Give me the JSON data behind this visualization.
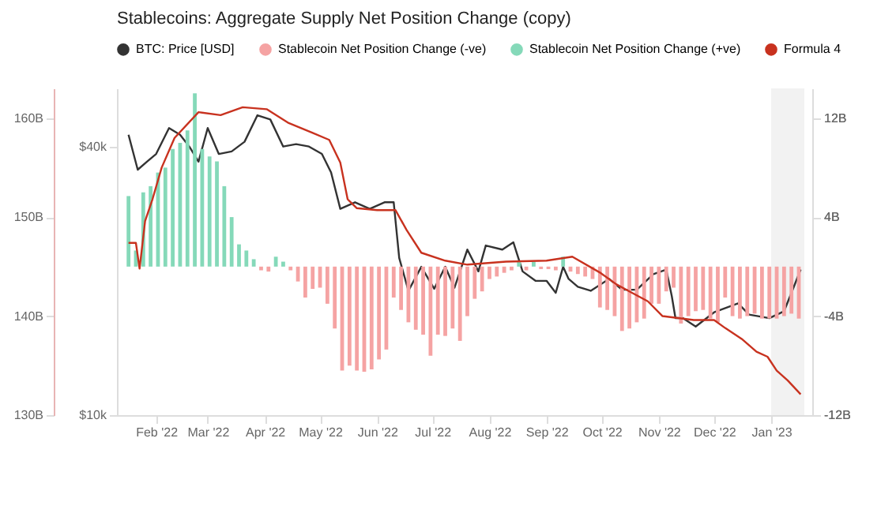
{
  "chart_data": {
    "type": "bar",
    "title": "Stablecoins: Aggregate Supply Net Position Change (copy)",
    "legend": "top",
    "xlim": [
      "2022-01-15",
      "2023-01-19"
    ],
    "xticks": [
      {
        "value": "2022-02-01",
        "label": "Feb '22"
      },
      {
        "value": "2022-03-01",
        "label": "Mar '22"
      },
      {
        "value": "2022-04-01",
        "label": "Apr '22"
      },
      {
        "value": "2022-05-01",
        "label": "May '22"
      },
      {
        "value": "2022-06-01",
        "label": "Jun '22"
      },
      {
        "value": "2022-07-01",
        "label": "Jul '22"
      },
      {
        "value": "2022-08-01",
        "label": "Aug '22"
      },
      {
        "value": "2022-09-01",
        "label": "Sep '22"
      },
      {
        "value": "2022-10-01",
        "label": "Oct '22"
      },
      {
        "value": "2022-11-01",
        "label": "Nov '22"
      },
      {
        "value": "2022-12-01",
        "label": "Dec '22"
      },
      {
        "value": "2023-01-01",
        "label": "Jan '23"
      }
    ],
    "ylim": [
      130,
      163
    ],
    "yticks": [
      {
        "value": 130,
        "label": "130B"
      },
      {
        "value": 140,
        "label": "140B"
      },
      {
        "value": 150,
        "label": "150B"
      },
      {
        "value": 160,
        "label": "160B"
      }
    ],
    "y2lim": [
      10000,
      54000
    ],
    "y2ticks": [
      {
        "value": 10000,
        "label": "$10k"
      },
      {
        "value": 40000,
        "label": "$40k"
      }
    ],
    "y3lim": [
      -12,
      14.4
    ],
    "y3ticks": [
      {
        "value": -12,
        "label": "-12B"
      },
      {
        "value": -4,
        "label": "-4B"
      },
      {
        "value": 4,
        "label": "4B"
      },
      {
        "value": 12,
        "label": "12B"
      }
    ],
    "log": "y2",
    "bands": [
      {
        "axis": "x",
        "from": "2023-01-01",
        "to": "2023-01-19",
        "color": "#f2f2f2"
      }
    ],
    "x": [
      "2022-01-17",
      "2022-01-21",
      "2022-01-25",
      "2022-01-29",
      "2022-02-02",
      "2022-02-06",
      "2022-02-10",
      "2022-02-14",
      "2022-02-18",
      "2022-02-22",
      "2022-02-26",
      "2022-03-02",
      "2022-03-06",
      "2022-03-10",
      "2022-03-14",
      "2022-03-18",
      "2022-03-22",
      "2022-03-26",
      "2022-03-30",
      "2022-04-03",
      "2022-04-07",
      "2022-04-11",
      "2022-04-15",
      "2022-04-19",
      "2022-04-23",
      "2022-04-27",
      "2022-05-01",
      "2022-05-05",
      "2022-05-09",
      "2022-05-13",
      "2022-05-17",
      "2022-05-21",
      "2022-05-25",
      "2022-05-29",
      "2022-06-02",
      "2022-06-06",
      "2022-06-10",
      "2022-06-14",
      "2022-06-18",
      "2022-06-22",
      "2022-06-26",
      "2022-06-30",
      "2022-07-04",
      "2022-07-08",
      "2022-07-12",
      "2022-07-16",
      "2022-07-20",
      "2022-07-24",
      "2022-07-28",
      "2022-08-01",
      "2022-08-05",
      "2022-08-09",
      "2022-08-13",
      "2022-08-17",
      "2022-08-21",
      "2022-08-25",
      "2022-08-29",
      "2022-09-02",
      "2022-09-06",
      "2022-09-10",
      "2022-09-14",
      "2022-09-18",
      "2022-09-22",
      "2022-09-26",
      "2022-09-30",
      "2022-10-04",
      "2022-10-08",
      "2022-10-12",
      "2022-10-16",
      "2022-10-20",
      "2022-10-24",
      "2022-10-28",
      "2022-11-01",
      "2022-11-05",
      "2022-11-09",
      "2022-11-13",
      "2022-11-17",
      "2022-11-21",
      "2022-11-25",
      "2022-11-29",
      "2022-12-03",
      "2022-12-07",
      "2022-12-11",
      "2022-12-15",
      "2022-12-19",
      "2022-12-23",
      "2022-12-27",
      "2022-12-31",
      "2023-01-04",
      "2023-01-08",
      "2023-01-12",
      "2023-01-16"
    ],
    "series": [
      {
        "name": "BTC: Price [USD]",
        "type": "line",
        "axis": "y2",
        "color": "#333333",
        "x": [
          "2022-01-17",
          "2022-01-22",
          "2022-01-27",
          "2022-02-01",
          "2022-02-08",
          "2022-02-14",
          "2022-02-19",
          "2022-02-24",
          "2022-03-01",
          "2022-03-07",
          "2022-03-14",
          "2022-03-21",
          "2022-03-28",
          "2022-04-04",
          "2022-04-11",
          "2022-04-18",
          "2022-04-25",
          "2022-05-02",
          "2022-05-07",
          "2022-05-12",
          "2022-05-20",
          "2022-05-28",
          "2022-06-05",
          "2022-06-10",
          "2022-06-13",
          "2022-06-18",
          "2022-06-25",
          "2022-07-02",
          "2022-07-08",
          "2022-07-13",
          "2022-07-20",
          "2022-07-26",
          "2022-07-30",
          "2022-08-08",
          "2022-08-14",
          "2022-08-19",
          "2022-08-26",
          "2022-09-01",
          "2022-09-06",
          "2022-09-10",
          "2022-09-13",
          "2022-09-18",
          "2022-09-25",
          "2022-10-05",
          "2022-10-12",
          "2022-10-20",
          "2022-10-29",
          "2022-11-05",
          "2022-11-08",
          "2022-11-10",
          "2022-11-14",
          "2022-11-21",
          "2022-12-01",
          "2022-12-14",
          "2022-12-20",
          "2022-12-31",
          "2023-01-08",
          "2023-01-12",
          "2023-01-17"
        ],
        "values": [
          42500,
          35500,
          37000,
          38500,
          44000,
          42500,
          40000,
          37000,
          44000,
          38500,
          39000,
          41000,
          47000,
          46000,
          40000,
          40500,
          40000,
          38500,
          35000,
          29000,
          30000,
          29000,
          30000,
          30000,
          22500,
          19000,
          21500,
          19200,
          21500,
          19300,
          23500,
          21000,
          24000,
          23500,
          24400,
          21000,
          20000,
          20000,
          18800,
          21500,
          20200,
          19400,
          19000,
          20200,
          19100,
          19100,
          20700,
          21200,
          18500,
          16500,
          16500,
          15800,
          17000,
          17800,
          16800,
          16500,
          17100,
          18800,
          21200
        ]
      },
      {
        "name": "Stablecoin Net Position Change (-ve)",
        "axis": "y3",
        "color": "#f5a3a3",
        "values": [
          null,
          null,
          null,
          null,
          null,
          null,
          null,
          null,
          null,
          null,
          null,
          null,
          null,
          null,
          null,
          null,
          null,
          null,
          -0.3,
          -0.4,
          null,
          null,
          -0.3,
          -1.2,
          -2.5,
          -1.8,
          -1.7,
          -3.0,
          -5.0,
          -8.4,
          -8.0,
          -8.4,
          -8.5,
          -8.3,
          -7.5,
          -6.7,
          -2.5,
          -3.5,
          -4.5,
          -5.1,
          -5.5,
          -7.2,
          -5.5,
          -5.6,
          -5.0,
          -6.0,
          -4.0,
          -2.6,
          -2.0,
          -1.0,
          -0.8,
          -0.5,
          -0.3,
          null,
          -0.3,
          null,
          -0.2,
          -0.2,
          -0.3,
          null,
          -0.4,
          -0.6,
          -0.8,
          -1.0,
          -3.3,
          -3.5,
          -4.0,
          -5.2,
          -5.0,
          -4.5,
          -4.2,
          -3.0,
          -3.0,
          -2.0,
          -1.7,
          -4.6,
          -4.0,
          -3.6,
          -3.5,
          -4.2,
          -4.5,
          -2.5,
          -4.0,
          -4.2,
          -4.0,
          -3.8,
          -4.2,
          -4.2,
          -4.2,
          -4.0,
          -3.8,
          -4.2
        ]
      },
      {
        "name": "Stablecoin Net Position Change (+ve)",
        "axis": "y3",
        "color": "#85d9b9",
        "values": [
          5.7,
          1.3,
          6.0,
          6.5,
          7.6,
          8.0,
          9.5,
          10,
          11,
          14,
          9.5,
          8.9,
          8.5,
          6.5,
          4.0,
          1.8,
          1.3,
          0.6,
          null,
          null,
          0.8,
          0.4,
          null,
          null,
          null,
          null,
          null,
          null,
          null,
          null,
          null,
          null,
          null,
          null,
          null,
          null,
          null,
          null,
          null,
          null,
          null,
          null,
          null,
          null,
          null,
          null,
          null,
          null,
          null,
          null,
          null,
          null,
          null,
          0.5,
          null,
          0.4,
          null,
          null,
          null,
          0.8,
          null,
          null,
          null,
          null,
          null,
          null,
          null,
          null,
          null,
          null,
          null,
          null,
          null,
          null,
          null,
          null,
          null,
          null,
          null,
          null,
          null,
          null,
          null,
          null,
          null,
          null,
          null,
          null,
          null,
          null,
          null,
          null
        ]
      },
      {
        "name": "Formula 4",
        "type": "line",
        "axis": "y",
        "color": "#c8321f",
        "x": [
          "2022-01-17",
          "2022-01-21",
          "2022-01-23",
          "2022-01-26",
          "2022-01-30",
          "2022-02-04",
          "2022-02-11",
          "2022-02-24",
          "2022-03-08",
          "2022-03-20",
          "2022-04-02",
          "2022-04-14",
          "2022-04-27",
          "2022-05-06",
          "2022-05-12",
          "2022-05-16",
          "2022-05-21",
          "2022-06-01",
          "2022-06-11",
          "2022-06-17",
          "2022-06-25",
          "2022-07-08",
          "2022-07-20",
          "2022-08-10",
          "2022-09-01",
          "2022-09-15",
          "2022-09-30",
          "2022-10-09",
          "2022-10-17",
          "2022-10-26",
          "2022-11-03",
          "2022-11-20",
          "2022-12-01",
          "2022-12-07",
          "2022-12-16",
          "2022-12-24",
          "2022-12-30",
          "2023-01-04",
          "2023-01-10",
          "2023-01-17"
        ],
        "values": [
          147.4,
          147.4,
          144.8,
          149.6,
          151.8,
          155,
          158,
          160.6,
          160.3,
          161.1,
          160.9,
          159.5,
          158.5,
          157.8,
          155.5,
          151.8,
          150.9,
          150.7,
          150.7,
          148.7,
          146.4,
          145.6,
          145.2,
          145.5,
          145.6,
          146,
          144.4,
          143.2,
          142.4,
          141.5,
          140,
          139.6,
          139.6,
          138.8,
          137.7,
          136.4,
          135.9,
          134.5,
          133.5,
          132.1
        ]
      }
    ]
  }
}
